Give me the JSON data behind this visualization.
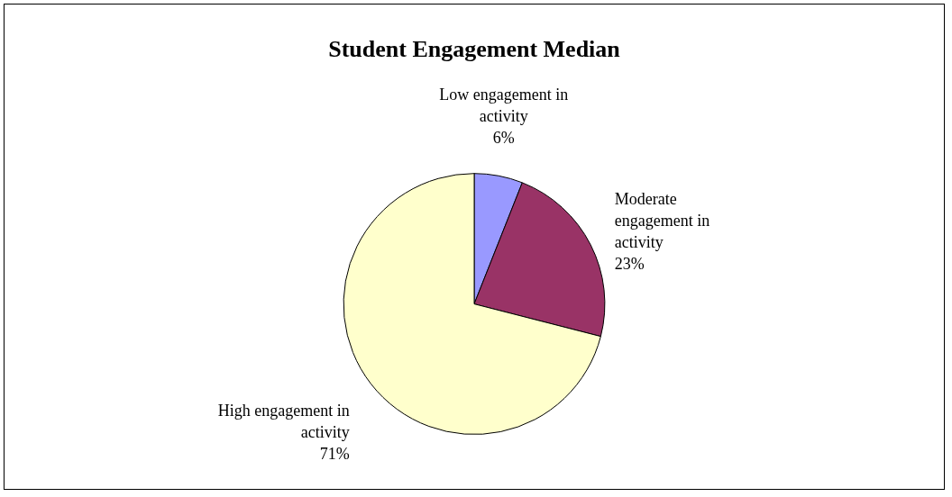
{
  "chart_data": {
    "type": "pie",
    "title": "Student Engagement Median",
    "categories": [
      "Low engagement in activity",
      "Moderate engagement in activity",
      "High engagement in activity"
    ],
    "values": [
      6,
      23,
      71
    ],
    "colors": [
      "#9999ff",
      "#993366",
      "#ffffcc"
    ],
    "value_labels": [
      "6%",
      "23%",
      "71%"
    ],
    "legend": false
  }
}
